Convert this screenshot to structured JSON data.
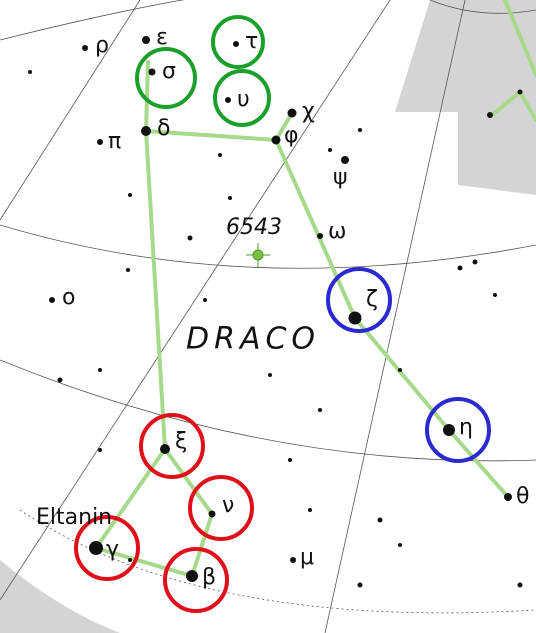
{
  "title": "DRACO",
  "stars": [
    "ρ",
    "ε",
    "τ",
    "σ",
    "υ",
    "χ",
    "π",
    "δ",
    "φ",
    "ψ",
    "6543",
    "ω",
    "ο",
    "ζ",
    "η",
    "ξ",
    "θ",
    "ν",
    "Eltanin",
    "γ",
    "β",
    "μ"
  ]
}
